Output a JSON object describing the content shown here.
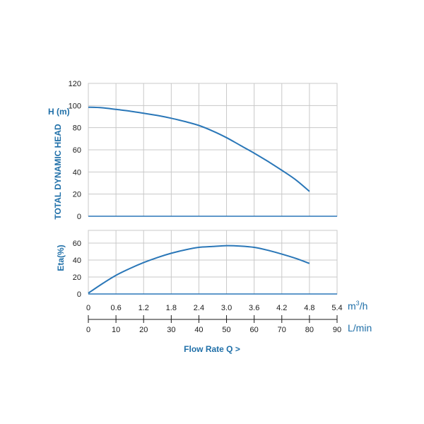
{
  "chart_data": [
    {
      "type": "line",
      "ylabel": "TOTAL DYNAMIC HEAD",
      "yunit": "H (m)",
      "yticks": [
        "0",
        "20",
        "40",
        "60",
        "80",
        "100",
        "120"
      ],
      "ylim": [
        0,
        120
      ],
      "xlim": [
        0,
        90
      ],
      "grid": true,
      "series": [
        {
          "x": [
            0,
            5,
            10,
            15,
            20,
            25,
            30,
            35,
            40,
            45,
            50,
            55,
            60,
            65,
            70,
            75,
            80
          ],
          "y": [
            98.5,
            98,
            96.5,
            95,
            93,
            91,
            88.5,
            85.5,
            82,
            77,
            71,
            64,
            57,
            49.5,
            41.5,
            33,
            22.5
          ]
        }
      ]
    },
    {
      "type": "line",
      "ylabel": "Eta(%)",
      "yticks": [
        "0",
        "20",
        "40",
        "60"
      ],
      "ylim": [
        0,
        75
      ],
      "xlim": [
        0,
        90
      ],
      "grid": true,
      "series": [
        {
          "x": [
            0,
            5,
            10,
            15,
            20,
            25,
            30,
            35,
            40,
            45,
            50,
            55,
            60,
            65,
            70,
            75,
            80
          ],
          "y": [
            1,
            12,
            22,
            30,
            37,
            43,
            48,
            52,
            55,
            56,
            57,
            56.5,
            55,
            51.5,
            47,
            42,
            36
          ]
        }
      ]
    }
  ],
  "x_axes": {
    "m3h": {
      "ticks": [
        "0",
        "0.6",
        "1.2",
        "1.8",
        "2.4",
        "3.0",
        "3.6",
        "4.2",
        "4.8",
        "5.4"
      ],
      "unit_base": "m",
      "unit_sup": "3",
      "unit_rest": "/h"
    },
    "lmin": {
      "ticks": [
        "0",
        "10",
        "20",
        "30",
        "40",
        "50",
        "60",
        "70",
        "80",
        "90"
      ],
      "unit": "L/min"
    }
  },
  "xlabel": "Flow Rate Q >",
  "colors": {
    "curve": "#2a77b8",
    "accent_text": "#1f6fa8",
    "grid": "#c8c8c8",
    "baseline": "#2a77b8"
  }
}
